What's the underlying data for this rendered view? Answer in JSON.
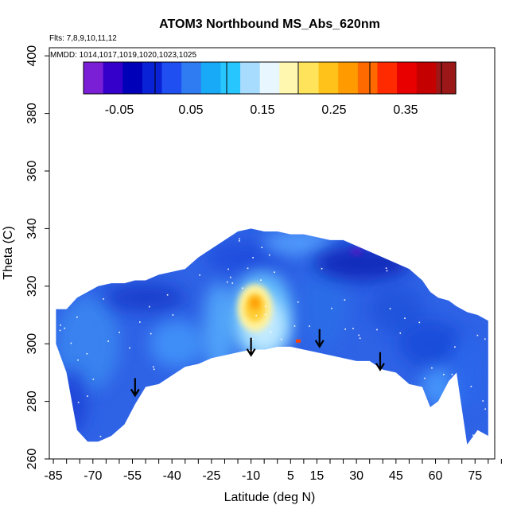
{
  "chart_data": {
    "type": "heatmap",
    "title": "ATOM3 Northbound MS_Abs_620nm",
    "flights_text": "Flts: 7,8,9,10,11,12",
    "mmdd_text": "MMDD: 1014,1017,1019,1020,1023,1025",
    "xlabel": "Latitude (deg N)",
    "ylabel": "Theta (C)",
    "xlim": [
      -85,
      85
    ],
    "ylim": [
      260,
      405
    ],
    "x_ticks": [
      -85,
      -70,
      -55,
      -40,
      -25,
      -10,
      5,
      15,
      30,
      45,
      60,
      75
    ],
    "x_tick_labels": [
      "-85",
      "-70",
      "-55",
      "-40",
      "-25",
      "-10",
      "5",
      "15",
      "30",
      "45",
      "60",
      "75"
    ],
    "y_ticks": [
      260,
      280,
      300,
      320,
      340,
      360,
      380,
      400
    ],
    "y_tick_labels": [
      "260",
      "280",
      "300",
      "320",
      "340",
      "360",
      "380",
      "400"
    ],
    "colorbar": {
      "range": [
        -0.1,
        0.42
      ],
      "tick_values": [
        -0.05,
        0.05,
        0.15,
        0.25,
        0.35
      ],
      "tick_labels": [
        "-0.05",
        "0.05",
        "0.15",
        "0.25",
        "0.35"
      ],
      "boundaries": [
        -0.1,
        0.0,
        0.1,
        0.2,
        0.3,
        0.4
      ],
      "colors": [
        "#7b1fd6",
        "#3500c9",
        "#0000b8",
        "#0a22d6",
        "#1f4ff0",
        "#2f7cf2",
        "#18a9f7",
        "#28c6ff",
        "#a8dcff",
        "#e8f6ff",
        "#fff7b0",
        "#ffe35a",
        "#ffc21a",
        "#ff9a00",
        "#ff6a00",
        "#ff2a00",
        "#e80000",
        "#c40000",
        "#9c1818"
      ]
    },
    "envelope": {
      "lat": [
        -84,
        -80,
        -76,
        -72,
        -68,
        -63,
        -58,
        -54,
        -50,
        -45,
        -40,
        -35,
        -30,
        -25,
        -20,
        -15,
        -10,
        -5,
        0,
        5,
        10,
        15,
        20,
        25,
        30,
        35,
        40,
        45,
        50,
        55,
        58,
        61,
        65,
        68,
        72,
        76,
        80
      ],
      "theta_top": [
        312,
        312,
        316,
        318,
        320,
        321,
        321,
        322,
        322,
        324,
        325,
        326,
        330,
        333,
        336,
        339,
        340,
        339,
        339,
        338,
        338,
        337,
        336,
        336,
        334,
        332,
        330,
        328,
        326,
        322,
        318,
        316,
        315,
        313,
        311,
        310,
        308
      ],
      "theta_bottom": [
        300,
        290,
        270,
        266,
        266,
        268,
        272,
        279,
        285,
        286,
        289,
        292,
        293,
        295,
        296,
        297,
        298,
        298,
        299,
        299,
        298,
        297,
        296,
        295,
        294,
        294,
        291,
        290,
        286,
        285,
        278,
        280,
        287,
        290,
        265,
        270,
        268
      ]
    },
    "max_region": {
      "lat_range": [
        -14,
        -3
      ],
      "theta_range": [
        305,
        320
      ],
      "value": 0.25
    },
    "arrows": [
      {
        "lat": -54,
        "theta": 282
      },
      {
        "lat": -10,
        "theta": 296
      },
      {
        "lat": 16,
        "theta": 299
      },
      {
        "lat": 39,
        "theta": 291
      }
    ]
  }
}
